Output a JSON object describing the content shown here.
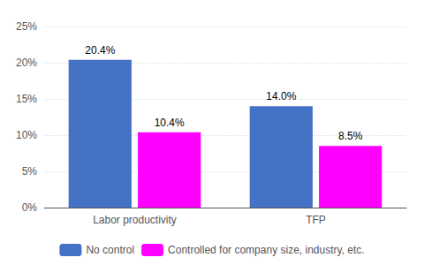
{
  "chart_data": {
    "type": "bar",
    "categories": [
      "Labor productivity",
      "TFP"
    ],
    "series": [
      {
        "name": "No control",
        "color": "#4472C4",
        "values": [
          20.4,
          14.0
        ],
        "value_labels": [
          "20.4%",
          "14.0%"
        ]
      },
      {
        "name": "Controlled for company size, industry, etc.",
        "color": "#FF00FF",
        "values": [
          10.4,
          8.5
        ],
        "value_labels": [
          "10.4%",
          "8.5%"
        ]
      }
    ],
    "ylim": [
      0,
      25
    ],
    "yticks": [
      {
        "value": 0,
        "label": "0%"
      },
      {
        "value": 5,
        "label": "5%"
      },
      {
        "value": 10,
        "label": "10%"
      },
      {
        "value": 15,
        "label": "15%"
      },
      {
        "value": 20,
        "label": "20%"
      },
      {
        "value": 25,
        "label": "25%"
      }
    ],
    "grid": true,
    "legend": "bottom",
    "data_labels": true
  }
}
